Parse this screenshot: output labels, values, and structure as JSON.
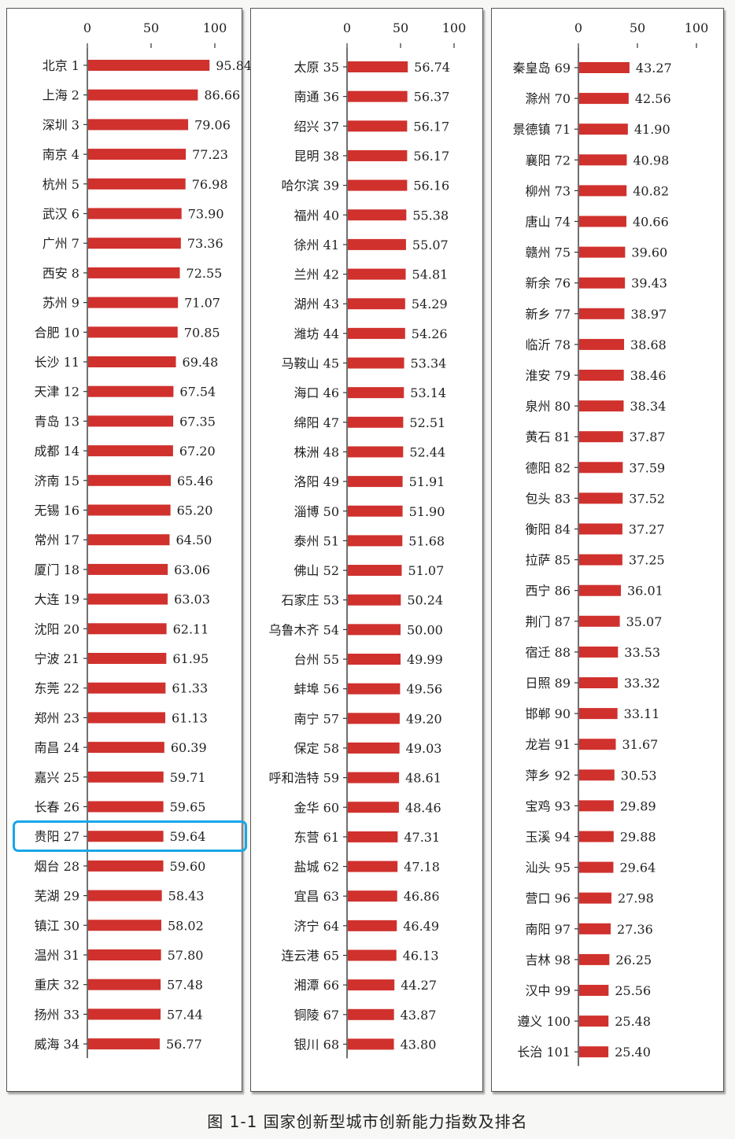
{
  "caption": "图 1-1   国家创新型城市创新能力指数及排名",
  "colors": {
    "bar": "#d0312d",
    "axis": "#333333",
    "highlight": "#19a7e8"
  },
  "chart_data": [
    {
      "type": "bar",
      "orientation": "horizontal",
      "xlim": [
        0,
        100
      ],
      "ticks": [
        0,
        50,
        100
      ],
      "categories": [
        "北京 1",
        "上海 2",
        "深圳 3",
        "南京 4",
        "杭州 5",
        "武汉 6",
        "广州 7",
        "西安 8",
        "苏州 9",
        "合肥 10",
        "长沙 11",
        "天津 12",
        "青岛 13",
        "成都 14",
        "济南 15",
        "无锡 16",
        "常州 17",
        "厦门 18",
        "大连 19",
        "沈阳 20",
        "宁波 21",
        "东莞 22",
        "郑州 23",
        "南昌 24",
        "嘉兴 25",
        "长春 26",
        "贵阳 27",
        "烟台 28",
        "芜湖 29",
        "镇江 30",
        "温州 31",
        "重庆 32",
        "扬州 33",
        "威海 34"
      ],
      "values": [
        95.84,
        86.66,
        79.06,
        77.23,
        76.98,
        73.9,
        73.36,
        72.55,
        71.07,
        70.85,
        69.48,
        67.54,
        67.35,
        67.2,
        65.46,
        65.2,
        64.5,
        63.06,
        63.03,
        62.11,
        61.95,
        61.33,
        61.13,
        60.39,
        59.71,
        59.65,
        59.64,
        59.6,
        58.43,
        58.02,
        57.8,
        57.48,
        57.44,
        56.77
      ],
      "value_labels": [
        "95.84",
        "86.66",
        "79.06",
        "77.23",
        "76.98",
        "73.90",
        "73.36",
        "72.55",
        "71.07",
        "70.85",
        "69.48",
        "67.54",
        "67.35",
        "67.20",
        "65.46",
        "65.20",
        "64.50",
        "63.06",
        "63.03",
        "62.11",
        "61.95",
        "61.33",
        "61.13",
        "60.39",
        "59.71",
        "59.65",
        "59.64",
        "59.60",
        "58.43",
        "58.02",
        "57.80",
        "57.48",
        "57.44",
        "56.77"
      ],
      "highlighted": "贵阳 27"
    },
    {
      "type": "bar",
      "orientation": "horizontal",
      "xlim": [
        0,
        100
      ],
      "ticks": [
        0,
        50,
        100
      ],
      "categories": [
        "太原 35",
        "南通 36",
        "绍兴 37",
        "昆明 38",
        "哈尔滨 39",
        "福州 40",
        "徐州 41",
        "兰州 42",
        "湖州 43",
        "潍坊 44",
        "马鞍山 45",
        "海口 46",
        "绵阳 47",
        "株洲 48",
        "洛阳 49",
        "淄博 50",
        "泰州 51",
        "佛山 52",
        "石家庄 53",
        "乌鲁木齐 54",
        "台州 55",
        "蚌埠 56",
        "南宁 57",
        "保定 58",
        "呼和浩特 59",
        "金华 60",
        "东营 61",
        "盐城 62",
        "宜昌 63",
        "济宁 64",
        "连云港 65",
        "湘潭 66",
        "铜陵 67",
        "银川 68"
      ],
      "values": [
        56.74,
        56.37,
        56.17,
        56.17,
        56.16,
        55.38,
        55.07,
        54.81,
        54.29,
        54.26,
        53.34,
        53.14,
        52.51,
        52.44,
        51.91,
        51.9,
        51.68,
        51.07,
        50.24,
        50.0,
        49.99,
        49.56,
        49.2,
        49.03,
        48.61,
        48.46,
        47.31,
        47.18,
        46.86,
        46.49,
        46.13,
        44.27,
        43.87,
        43.8
      ],
      "value_labels": [
        "56.74",
        "56.37",
        "56.17",
        "56.17",
        "56.16",
        "55.38",
        "55.07",
        "54.81",
        "54.29",
        "54.26",
        "53.34",
        "53.14",
        "52.51",
        "52.44",
        "51.91",
        "51.90",
        "51.68",
        "51.07",
        "50.24",
        "50.00",
        "49.99",
        "49.56",
        "49.20",
        "49.03",
        "48.61",
        "48.46",
        "47.31",
        "47.18",
        "46.86",
        "46.49",
        "46.13",
        "44.27",
        "43.87",
        "43.80"
      ]
    },
    {
      "type": "bar",
      "orientation": "horizontal",
      "xlim": [
        0,
        100
      ],
      "ticks": [
        0,
        50,
        100
      ],
      "categories": [
        "秦皇岛 69",
        "滁州 70",
        "景德镇 71",
        "襄阳 72",
        "柳州 73",
        "唐山 74",
        "赣州 75",
        "新余 76",
        "新乡 77",
        "临沂 78",
        "淮安 79",
        "泉州 80",
        "黄石 81",
        "德阳 82",
        "包头 83",
        "衡阳 84",
        "拉萨 85",
        "西宁 86",
        "荆门 87",
        "宿迁 88",
        "日照 89",
        "邯郸 90",
        "龙岩 91",
        "萍乡 92",
        "宝鸡 93",
        "玉溪 94",
        "汕头 95",
        "营口 96",
        "南阳 97",
        "吉林 98",
        "汉中 99",
        "遵义 100",
        "长治 101"
      ],
      "values": [
        43.27,
        42.56,
        41.9,
        40.98,
        40.82,
        40.66,
        39.6,
        39.43,
        38.97,
        38.68,
        38.46,
        38.34,
        37.87,
        37.59,
        37.52,
        37.27,
        37.25,
        36.01,
        35.07,
        33.53,
        33.32,
        33.11,
        31.67,
        30.53,
        29.89,
        29.88,
        29.64,
        27.98,
        27.36,
        26.25,
        25.56,
        25.48,
        25.4
      ],
      "value_labels": [
        "43.27",
        "42.56",
        "41.90",
        "40.98",
        "40.82",
        "40.66",
        "39.60",
        "39.43",
        "38.97",
        "38.68",
        "38.46",
        "38.34",
        "37.87",
        "37.59",
        "37.52",
        "37.27",
        "37.25",
        "36.01",
        "35.07",
        "33.53",
        "33.32",
        "33.11",
        "31.67",
        "30.53",
        "29.89",
        "29.88",
        "29.64",
        "27.98",
        "27.36",
        "26.25",
        "25.56",
        "25.48",
        "25.40"
      ]
    }
  ]
}
